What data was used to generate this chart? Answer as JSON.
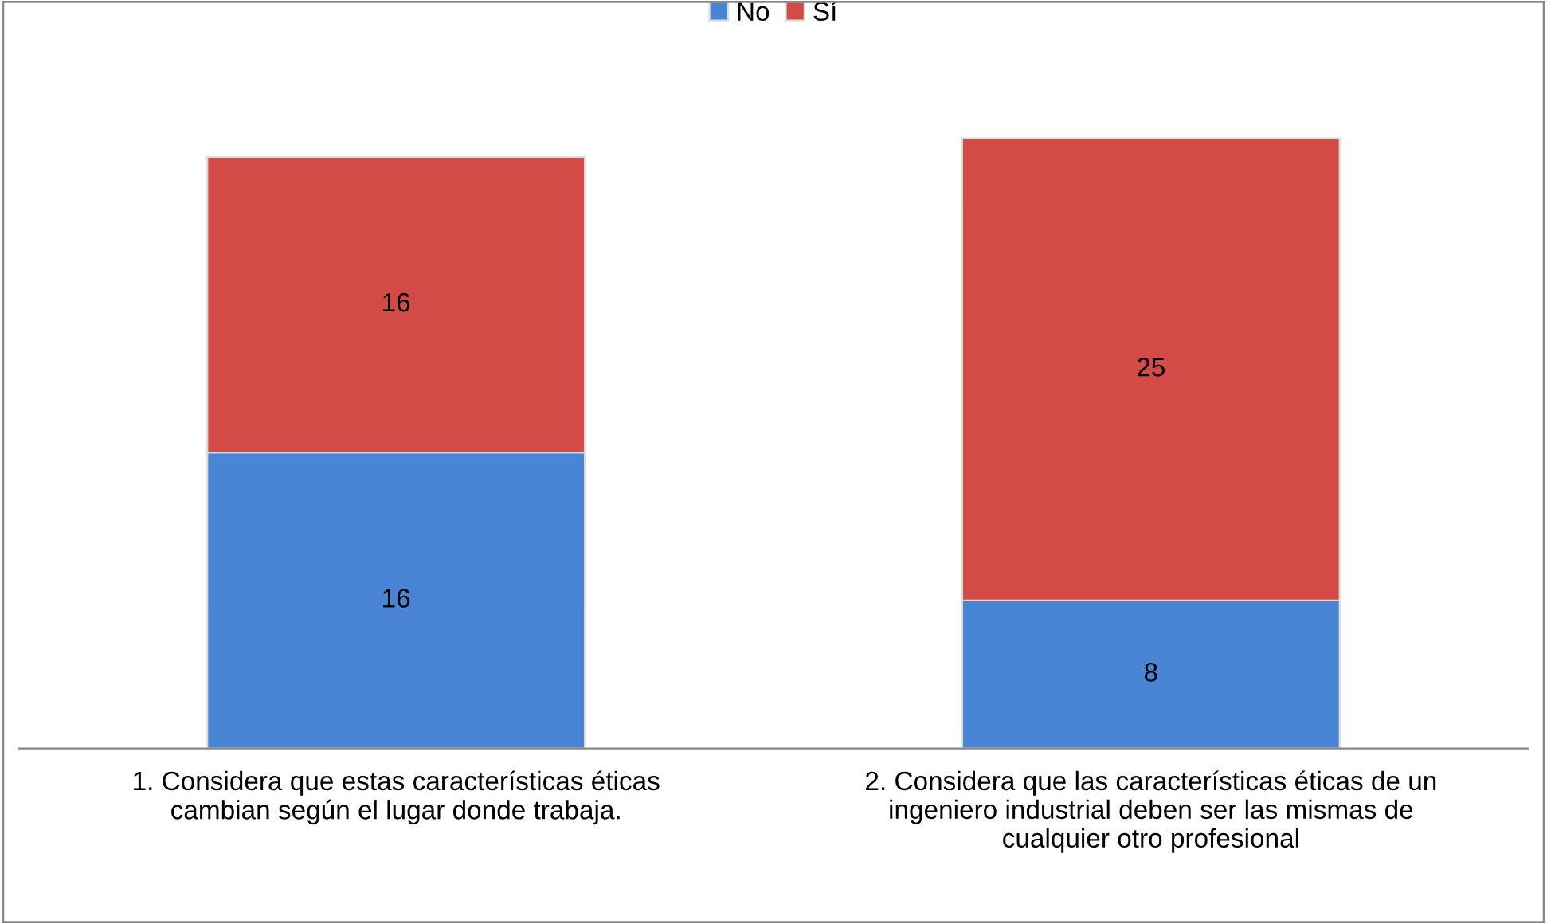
{
  "chart_data": {
    "type": "bar",
    "stacked": true,
    "data_labels": true,
    "legend": "top",
    "grid": false,
    "categories": [
      "1. Considera que estas características éticas\ncambian según el lugar donde trabaja.",
      "2. Considera que las características éticas de un\ningeniero industrial deben ser las mismas de\ncualquier otro profesional"
    ],
    "series": [
      {
        "name": "No",
        "color": "#4a84d4",
        "values": [
          16,
          8
        ]
      },
      {
        "name": "Sí",
        "color": "#d44a46",
        "values": [
          16,
          25
        ]
      }
    ]
  }
}
